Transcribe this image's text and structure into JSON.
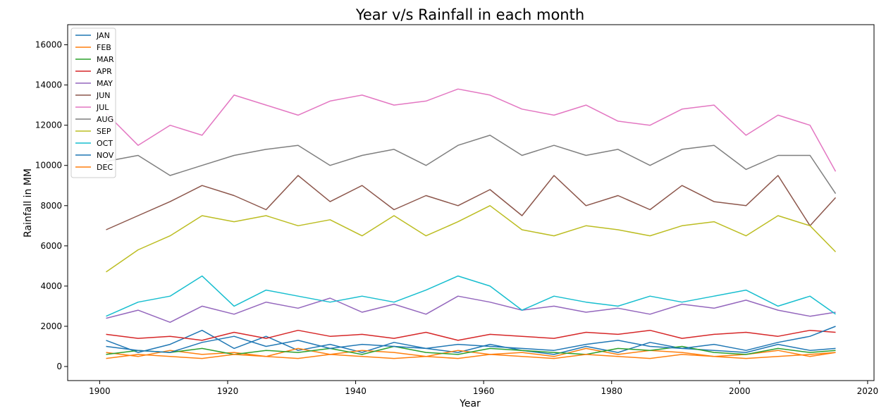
{
  "chart_data": {
    "type": "line",
    "title": "Year v/s Rainfall in each month",
    "xlabel": "Year",
    "ylabel": "Rainfall in MM",
    "xlim": [
      1895,
      2021
    ],
    "ylim": [
      -700,
      17000
    ],
    "xticks": [
      1900,
      1920,
      1940,
      1960,
      1980,
      2000,
      2020
    ],
    "yticks": [
      0,
      2000,
      4000,
      6000,
      8000,
      10000,
      12000,
      14000,
      16000
    ],
    "grid": false,
    "legend_position": "top-left",
    "x": [
      1901,
      1906,
      1911,
      1916,
      1921,
      1926,
      1931,
      1936,
      1941,
      1946,
      1951,
      1956,
      1961,
      1966,
      1971,
      1976,
      1981,
      1986,
      1991,
      1996,
      2001,
      2006,
      2011,
      2015
    ],
    "series": [
      {
        "name": "JAN",
        "color": "#1f77b4",
        "values": [
          1300,
          700,
          1100,
          1800,
          900,
          1500,
          800,
          1100,
          700,
          1200,
          900,
          700,
          1100,
          800,
          600,
          1000,
          700,
          1200,
          900,
          800,
          700,
          1100,
          800,
          900
        ]
      },
      {
        "name": "FEB",
        "color": "#ff7f0e",
        "values": [
          700,
          500,
          800,
          600,
          700,
          500,
          900,
          600,
          800,
          700,
          500,
          800,
          600,
          700,
          500,
          900,
          600,
          800,
          700,
          500,
          600,
          800,
          500,
          700
        ]
      },
      {
        "name": "MAR",
        "color": "#2ca02c",
        "values": [
          600,
          800,
          700,
          900,
          600,
          800,
          700,
          900,
          600,
          1000,
          700,
          600,
          900,
          800,
          700,
          600,
          900,
          800,
          1000,
          700,
          600,
          900,
          700,
          800
        ]
      },
      {
        "name": "APR",
        "color": "#d62728",
        "values": [
          1600,
          1400,
          1500,
          1300,
          1700,
          1400,
          1800,
          1500,
          1600,
          1400,
          1700,
          1300,
          1600,
          1500,
          1400,
          1700,
          1600,
          1800,
          1400,
          1600,
          1700,
          1500,
          1800,
          1700
        ]
      },
      {
        "name": "MAY",
        "color": "#9467bd",
        "values": [
          2400,
          2800,
          2200,
          3000,
          2600,
          3200,
          2900,
          3400,
          2700,
          3100,
          2600,
          3500,
          3200,
          2800,
          3000,
          2700,
          2900,
          2600,
          3100,
          2900,
          3300,
          2800,
          2500,
          2700
        ]
      },
      {
        "name": "JUN",
        "color": "#8c564b",
        "values": [
          6800,
          7500,
          8200,
          9000,
          8500,
          7800,
          9500,
          8200,
          9000,
          7800,
          8500,
          8000,
          8800,
          7500,
          9500,
          8000,
          8500,
          7800,
          9000,
          8200,
          8000,
          9500,
          7000,
          8400
        ]
      },
      {
        "name": "JUL",
        "color": "#e377c2",
        "values": [
          12600,
          11000,
          12000,
          11500,
          13500,
          13000,
          12500,
          13200,
          13500,
          13000,
          13200,
          13800,
          13500,
          12800,
          12500,
          13000,
          12200,
          12000,
          12800,
          13000,
          11500,
          12500,
          12000,
          9700
        ]
      },
      {
        "name": "AUG",
        "color": "#7f7f7f",
        "values": [
          10200,
          10500,
          9500,
          10000,
          10500,
          10800,
          11000,
          10000,
          10500,
          10800,
          10000,
          11000,
          11500,
          10500,
          11000,
          10500,
          10800,
          10000,
          10800,
          11000,
          9800,
          10500,
          10500,
          8600
        ]
      },
      {
        "name": "SEP",
        "color": "#bcbd22",
        "values": [
          4700,
          5800,
          6500,
          7500,
          7200,
          7500,
          7000,
          7300,
          6500,
          7500,
          6500,
          7200,
          8000,
          6800,
          6500,
          7000,
          6800,
          6500,
          7000,
          7200,
          6500,
          7500,
          7000,
          5700
        ]
      },
      {
        "name": "OCT",
        "color": "#17becf",
        "values": [
          2500,
          3200,
          3500,
          4500,
          3000,
          3800,
          3500,
          3200,
          3500,
          3200,
          3800,
          4500,
          4000,
          2800,
          3500,
          3200,
          3000,
          3500,
          3200,
          3500,
          3800,
          3000,
          3500,
          2600
        ]
      },
      {
        "name": "NOV",
        "color": "#1f77b4",
        "values": [
          1000,
          800,
          700,
          1200,
          1500,
          1000,
          1300,
          900,
          1100,
          1000,
          900,
          1100,
          1000,
          900,
          800,
          1100,
          1300,
          1000,
          900,
          1100,
          800,
          1200,
          1500,
          2000
        ]
      },
      {
        "name": "DEC",
        "color": "#ff7f0e",
        "values": [
          400,
          600,
          500,
          400,
          600,
          500,
          400,
          600,
          500,
          400,
          500,
          400,
          600,
          500,
          400,
          600,
          500,
          400,
          600,
          500,
          400,
          500,
          600,
          700
        ]
      }
    ]
  }
}
